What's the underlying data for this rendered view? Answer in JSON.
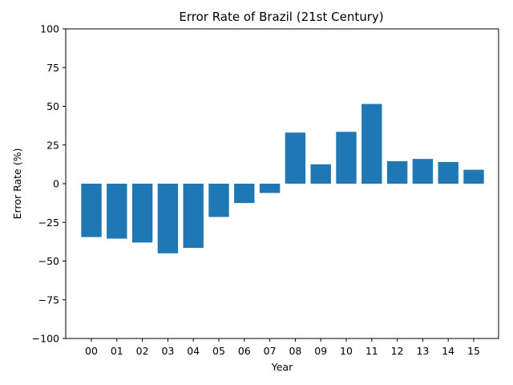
{
  "chart_data": {
    "type": "bar",
    "title": "Error Rate of Brazil (21st Century)",
    "xlabel": "Year",
    "ylabel": "Error Rate (%)",
    "categories": [
      "00",
      "01",
      "02",
      "03",
      "04",
      "05",
      "06",
      "07",
      "08",
      "09",
      "10",
      "11",
      "12",
      "13",
      "14",
      "15"
    ],
    "values": [
      -34.5,
      -35.5,
      -38,
      -45,
      -41.5,
      -21.5,
      -12.5,
      -6,
      33,
      12.5,
      33.5,
      51.5,
      14.5,
      16,
      14,
      9
    ],
    "ylim": [
      -100,
      100
    ],
    "yticks": [
      -100,
      -75,
      -50,
      -25,
      0,
      25,
      50,
      75,
      100
    ],
    "grid": false,
    "bar_color": "#1f77b4"
  }
}
